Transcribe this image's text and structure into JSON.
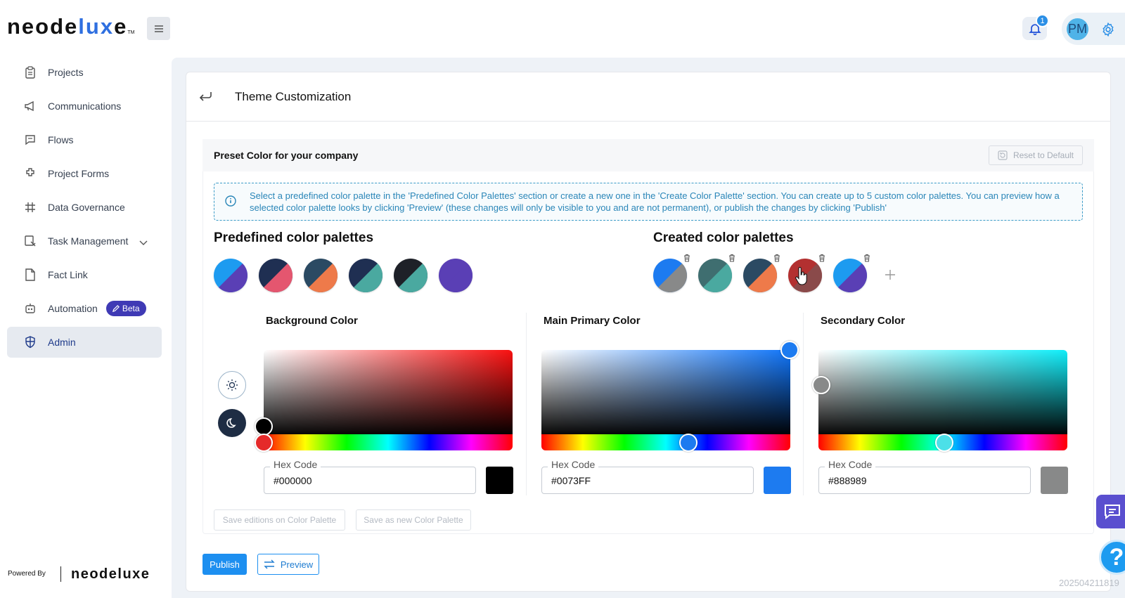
{
  "brand": {
    "name_start": "neode",
    "name_accent": "lux",
    "name_end": "e",
    "tm": "TM"
  },
  "header": {
    "notification_count": "1",
    "user_initials": "PM"
  },
  "sidebar": {
    "items": [
      {
        "label": "Projects",
        "icon": "clipboard-icon"
      },
      {
        "label": "Communications",
        "icon": "megaphone-icon"
      },
      {
        "label": "Flows",
        "icon": "message-square-icon"
      },
      {
        "label": "Project Forms",
        "icon": "puzzle-icon"
      },
      {
        "label": "Data Governance",
        "icon": "grid-icon"
      },
      {
        "label": "Task Management",
        "icon": "task-icon"
      },
      {
        "label": "Fact Link",
        "icon": "file-icon"
      },
      {
        "label": "Automation",
        "icon": "robot-icon",
        "badge": "Beta"
      },
      {
        "label": "Admin",
        "icon": "shield-icon",
        "active": true
      }
    ],
    "powered_by": "Powered By",
    "powered_logo": "neodeluxe"
  },
  "page": {
    "title": "Theme Customization"
  },
  "section": {
    "title": "Preset Color for your company",
    "reset_label": "Reset to Default",
    "info": "Select a predefined color palette in the 'Predefined Color Palettes' section or create a new one in the 'Create Color Palette' section. You can create up to 5 custom color palettes. You can preview how a selected color palette looks by clicking 'Preview' (these changes will only be visible to you and are not permanent), or publish the changes by clicking 'Publish'"
  },
  "predefined": {
    "title": "Predefined color palettes",
    "swatches": [
      {
        "a": "#1d9bf0",
        "b": "#5a3fb5"
      },
      {
        "a": "#1f2f52",
        "b": "#e4566f"
      },
      {
        "a": "#2b4a63",
        "b": "#ee7a4a"
      },
      {
        "a": "#1f2f52",
        "b": "#4aa9a0"
      },
      {
        "a": "#1e2128",
        "b": "#4aa9a0"
      },
      {
        "a": "#5a3fb5",
        "b": "#5a3fb5"
      }
    ]
  },
  "created": {
    "title": "Created color palettes",
    "swatches": [
      {
        "a": "#1d7bf0",
        "b": "#888989"
      },
      {
        "a": "#3f6e70",
        "b": "#4aa9a0"
      },
      {
        "a": "#2b4a63",
        "b": "#ee7a4a"
      },
      {
        "a": "#b33030",
        "b": "#8a4a4a"
      },
      {
        "a": "#1d9bf0",
        "b": "#5a3fb5"
      }
    ]
  },
  "pickers": [
    {
      "title": "Background Color",
      "hex_label": "Hex Code",
      "hex": "#000000",
      "hue": "#ff2a2a",
      "chip": "#000000"
    },
    {
      "title": "Main Primary Color",
      "hex_label": "Hex Code",
      "hex": "#0073FF",
      "hue": "#1d7bf0",
      "chip": "#1d7bf0"
    },
    {
      "title": "Secondary Color",
      "hex_label": "Hex Code",
      "hex": "#888989",
      "hue": "#4ce0e8",
      "chip": "#888989"
    }
  ],
  "actions": {
    "save_edit": "Save editions on Color Palette",
    "save_new": "Save as new Color Palette",
    "publish": "Publish",
    "preview": "Preview"
  },
  "build_id": "202504211819"
}
